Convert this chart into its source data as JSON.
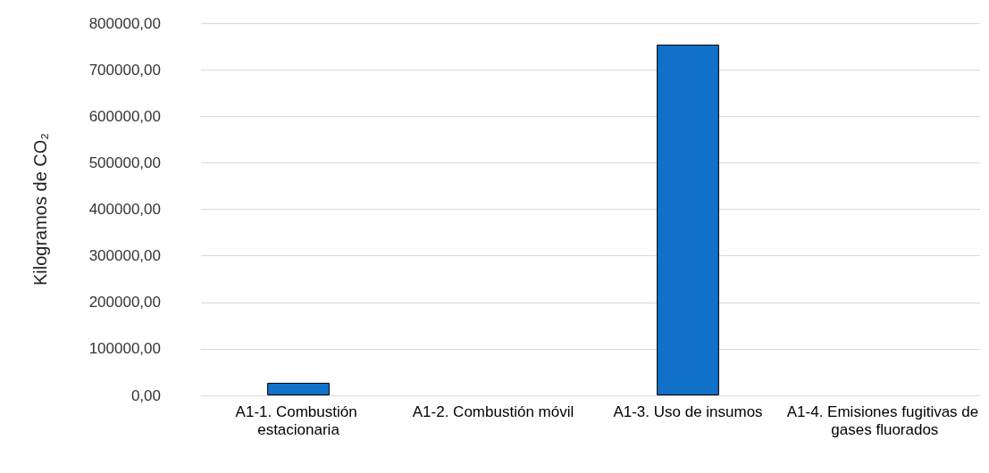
{
  "chart_data": {
    "type": "bar",
    "ylabel": "Kilogramos de CO₂",
    "categories": [
      "A1-1. Combustión estacionaria",
      "A1-2. Combustión móvil",
      "A1-3. Uso de insumos",
      "A1-4. Emisiones fugitivas de gases fluorados"
    ],
    "values": [
      27000,
      0,
      754000,
      0
    ],
    "color": "#1170c8",
    "ylim": [
      0,
      800000
    ],
    "yticks": [
      {
        "value": 0,
        "label": "0,00"
      },
      {
        "value": 100000,
        "label": "100000,00"
      },
      {
        "value": 200000,
        "label": "200000,00"
      },
      {
        "value": 300000,
        "label": "300000,00"
      },
      {
        "value": 400000,
        "label": "400000,00"
      },
      {
        "value": 500000,
        "label": "500000,00"
      },
      {
        "value": 600000,
        "label": "600000,00"
      },
      {
        "value": 700000,
        "label": "700000,00"
      },
      {
        "value": 800000,
        "label": "800000,00"
      }
    ],
    "grid": "y"
  }
}
